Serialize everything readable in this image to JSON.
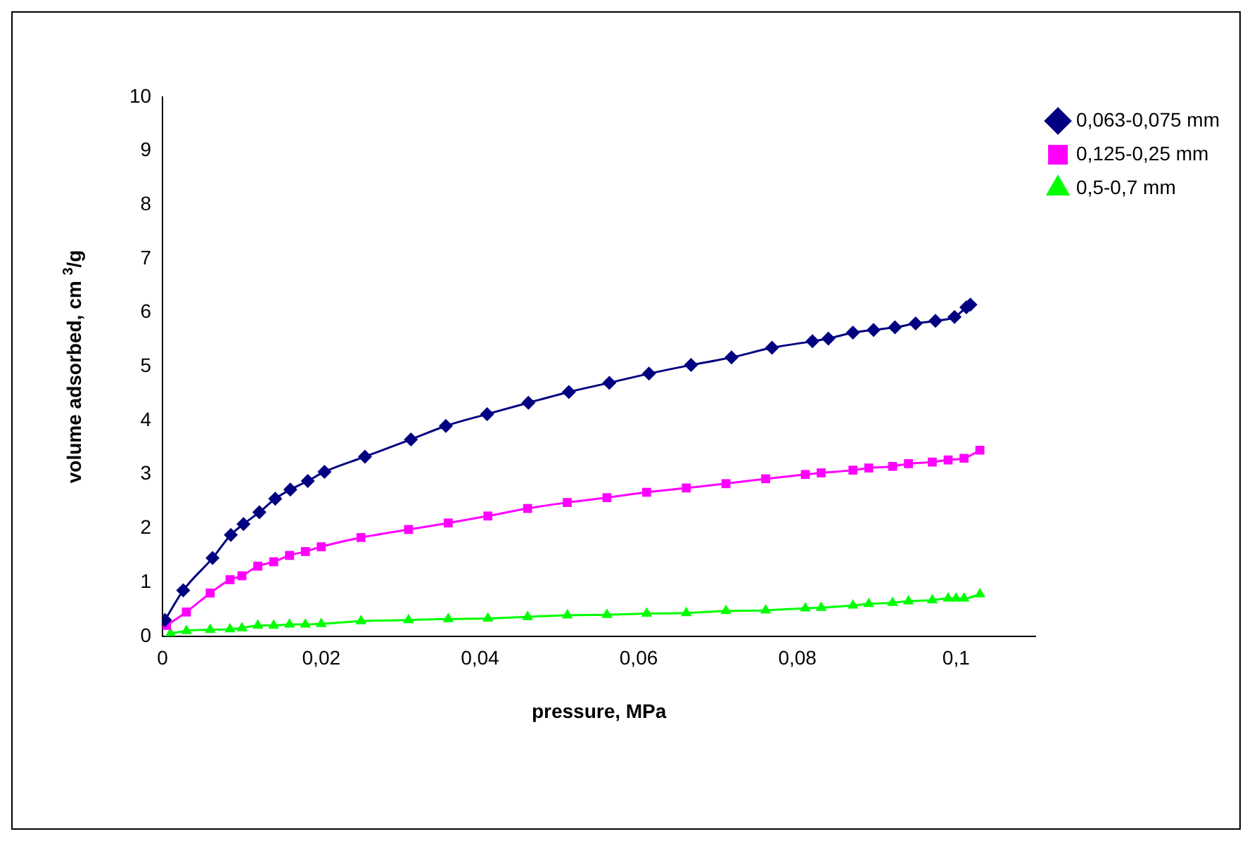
{
  "chart_data": {
    "type": "line",
    "xlabel": "pressure, MPa",
    "ylabel": "volume adsorbed, cm $^{3}$/g",
    "xlim": [
      0,
      0.11
    ],
    "ylim": [
      0,
      10
    ],
    "xticks": [
      0,
      {
        "value": 0.02,
        "label": "0,02"
      },
      {
        "value": 0.04,
        "label": "0,04"
      },
      {
        "value": 0.06,
        "label": "0,06"
      },
      {
        "value": 0.08,
        "label": "0,08"
      },
      {
        "value": 0.1,
        "label": "0,1"
      }
    ],
    "yticks": [
      0,
      1,
      2,
      3,
      4,
      5,
      6,
      7,
      8,
      9,
      10
    ],
    "grid": false,
    "legend": "right",
    "line_style": "solid",
    "series": [
      {
        "name": "0,063-0,075 mm",
        "color": "#000080",
        "marker": "diamond",
        "x": [
          0.0003,
          0.0026,
          0.0063,
          0.0086,
          0.0102,
          0.0122,
          0.0142,
          0.0161,
          0.0183,
          0.0204,
          0.0255,
          0.0313,
          0.0357,
          0.0409,
          0.0461,
          0.0512,
          0.0563,
          0.0613,
          0.0666,
          0.0717,
          0.0768,
          0.0819,
          0.0839,
          0.087,
          0.0896,
          0.0923,
          0.0949,
          0.0974,
          0.0998,
          0.1013,
          0.1018
        ],
        "values": [
          0.3,
          0.85,
          1.45,
          1.88,
          2.08,
          2.3,
          2.55,
          2.72,
          2.88,
          3.05,
          3.33,
          3.65,
          3.9,
          4.12,
          4.33,
          4.53,
          4.7,
          4.87,
          5.03,
          5.17,
          5.35,
          5.47,
          5.52,
          5.63,
          5.68,
          5.73,
          5.8,
          5.85,
          5.92,
          6.1,
          6.15
        ]
      },
      {
        "name": "0,125-0,25 mm",
        "color": "#ff00ff",
        "marker": "square",
        "x": [
          0.0005,
          0.003,
          0.006,
          0.0085,
          0.01,
          0.012,
          0.014,
          0.016,
          0.018,
          0.02,
          0.025,
          0.031,
          0.036,
          0.041,
          0.046,
          0.051,
          0.056,
          0.061,
          0.066,
          0.071,
          0.076,
          0.081,
          0.083,
          0.087,
          0.089,
          0.092,
          0.094,
          0.097,
          0.099,
          0.101,
          0.103
        ],
        "values": [
          0.2,
          0.45,
          0.8,
          1.05,
          1.12,
          1.3,
          1.38,
          1.5,
          1.57,
          1.66,
          1.83,
          1.98,
          2.1,
          2.23,
          2.37,
          2.48,
          2.57,
          2.67,
          2.75,
          2.83,
          2.92,
          3.0,
          3.03,
          3.08,
          3.12,
          3.15,
          3.2,
          3.23,
          3.27,
          3.3,
          3.45
        ]
      },
      {
        "name": "0,5-0,7 mm",
        "color": "#00ff00",
        "marker": "triangle",
        "x": [
          0.001,
          0.003,
          0.006,
          0.0085,
          0.01,
          0.012,
          0.014,
          0.016,
          0.018,
          0.02,
          0.025,
          0.031,
          0.036,
          0.041,
          0.046,
          0.051,
          0.056,
          0.061,
          0.066,
          0.071,
          0.076,
          0.081,
          0.083,
          0.087,
          0.089,
          0.092,
          0.094,
          0.097,
          0.099,
          0.1,
          0.101,
          0.103
        ],
        "values": [
          0.05,
          0.1,
          0.12,
          0.13,
          0.15,
          0.2,
          0.2,
          0.22,
          0.22,
          0.23,
          0.28,
          0.3,
          0.32,
          0.33,
          0.36,
          0.39,
          0.4,
          0.42,
          0.43,
          0.47,
          0.48,
          0.52,
          0.53,
          0.57,
          0.6,
          0.62,
          0.65,
          0.67,
          0.7,
          0.7,
          0.7,
          0.78
        ]
      }
    ]
  }
}
